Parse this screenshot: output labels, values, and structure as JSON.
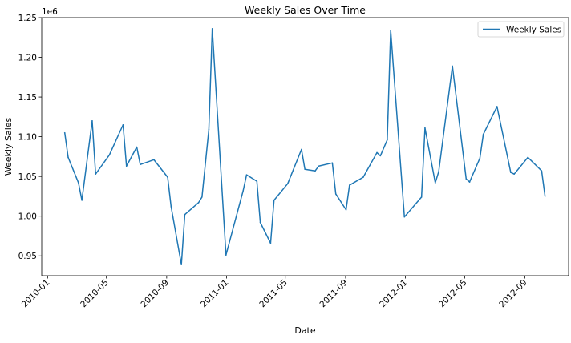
{
  "chart_data": {
    "type": "line",
    "title": "Weekly Sales Over Time",
    "xlabel": "Date",
    "ylabel": "Weekly Sales",
    "y_offset_label": "1e6",
    "y_scale": 1000000,
    "xlim": [
      "2009-12-20",
      "2012-11-29"
    ],
    "ylim": [
      0.925,
      1.25
    ],
    "grid": false,
    "legend_position": "top-right",
    "x_ticks": [
      "2010-01",
      "2010-05",
      "2010-09",
      "2011-01",
      "2011-05",
      "2011-09",
      "2012-01",
      "2012-05",
      "2012-09"
    ],
    "y_ticks": [
      "0.95",
      "1.00",
      "1.05",
      "1.10",
      "1.15",
      "1.20",
      "1.25"
    ],
    "series": [
      {
        "name": "Weekly Sales",
        "color": "#1f77b4",
        "points": [
          [
            "2010-02-05",
            1.105
          ],
          [
            "2010-02-12",
            1.074
          ],
          [
            "2010-03-05",
            1.042
          ],
          [
            "2010-03-12",
            1.02
          ],
          [
            "2010-04-02",
            1.12
          ],
          [
            "2010-04-09",
            1.053
          ],
          [
            "2010-05-07",
            1.077
          ],
          [
            "2010-06-04",
            1.115
          ],
          [
            "2010-06-11",
            1.063
          ],
          [
            "2010-07-02",
            1.087
          ],
          [
            "2010-07-09",
            1.065
          ],
          [
            "2010-08-06",
            1.071
          ],
          [
            "2010-09-03",
            1.049
          ],
          [
            "2010-09-10",
            1.012
          ],
          [
            "2010-10-01",
            0.939
          ],
          [
            "2010-10-08",
            1.002
          ],
          [
            "2010-11-05",
            1.017
          ],
          [
            "2010-11-12",
            1.024
          ],
          [
            "2010-11-26",
            1.109
          ],
          [
            "2010-12-03",
            1.236
          ],
          [
            "2010-12-31",
            0.951
          ],
          [
            "2011-02-04",
            1.032
          ],
          [
            "2011-02-11",
            1.052
          ],
          [
            "2011-03-04",
            1.044
          ],
          [
            "2011-03-11",
            0.992
          ],
          [
            "2011-04-01",
            0.966
          ],
          [
            "2011-04-08",
            1.02
          ],
          [
            "2011-05-06",
            1.041
          ],
          [
            "2011-06-03",
            1.084
          ],
          [
            "2011-06-10",
            1.059
          ],
          [
            "2011-07-01",
            1.057
          ],
          [
            "2011-07-08",
            1.063
          ],
          [
            "2011-08-05",
            1.067
          ],
          [
            "2011-08-12",
            1.028
          ],
          [
            "2011-09-02",
            1.008
          ],
          [
            "2011-09-09",
            1.039
          ],
          [
            "2011-10-07",
            1.049
          ],
          [
            "2011-11-04",
            1.08
          ],
          [
            "2011-11-11",
            1.076
          ],
          [
            "2011-11-25",
            1.096
          ],
          [
            "2011-12-02",
            1.234
          ],
          [
            "2011-12-30",
            0.999
          ],
          [
            "2012-02-03",
            1.024
          ],
          [
            "2012-02-10",
            1.111
          ],
          [
            "2012-03-02",
            1.042
          ],
          [
            "2012-03-09",
            1.056
          ],
          [
            "2012-04-06",
            1.189
          ],
          [
            "2012-05-04",
            1.047
          ],
          [
            "2012-05-11",
            1.043
          ],
          [
            "2012-06-01",
            1.073
          ],
          [
            "2012-06-08",
            1.103
          ],
          [
            "2012-07-06",
            1.138
          ],
          [
            "2012-08-03",
            1.055
          ],
          [
            "2012-08-10",
            1.053
          ],
          [
            "2012-09-07",
            1.074
          ],
          [
            "2012-10-05",
            1.057
          ],
          [
            "2012-10-12",
            1.025
          ]
        ]
      }
    ]
  }
}
